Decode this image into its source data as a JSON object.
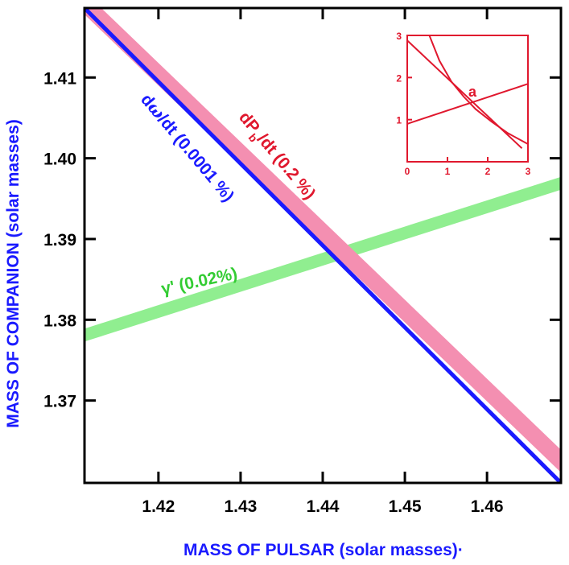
{
  "chart_data": {
    "type": "line",
    "xlabel": "MASS OF PULSAR (solar masses)",
    "xlabel_suffix": "·",
    "ylabel": "MASS OF COMPANION (solar masses)",
    "xlim": [
      1.411,
      1.469
    ],
    "ylim": [
      1.3598,
      1.4186
    ],
    "x_ticks": [
      1.42,
      1.43,
      1.44,
      1.45,
      1.46
    ],
    "x_tick_labels": [
      "1.42",
      "1.43",
      "1.44",
      "1.45",
      "1.46"
    ],
    "y_ticks": [
      1.37,
      1.38,
      1.39,
      1.4,
      1.41
    ],
    "y_tick_labels": [
      "1.37",
      "1.38",
      "1.39",
      "1.40",
      "1.41"
    ],
    "series": [
      {
        "name": "dPb/dt band",
        "label_main": "dP",
        "label_sub": "b",
        "label_rest": "/dt (0.2 %)",
        "color": "#f48fb1",
        "kind": "band",
        "centerline": [
          [
            1.411,
            1.4192
          ],
          [
            1.469,
            1.3625
          ]
        ],
        "half_width": 0.0014
      },
      {
        "name": "domega/dt line",
        "label_main": "d",
        "label_omega": "ω",
        "label_rest": "/dt (0.0001 %)",
        "color": "#1a1aff",
        "kind": "line",
        "points": [
          [
            1.411,
            1.4186
          ],
          [
            1.469,
            1.3598
          ]
        ]
      },
      {
        "name": "gamma band",
        "label": "γ' (0.02%)",
        "color": "#90ee90",
        "kind": "band",
        "centerline": [
          [
            1.411,
            1.3781
          ],
          [
            1.469,
            1.3969
          ]
        ],
        "half_width": 0.0008
      }
    ],
    "colors": {
      "axis": "#000000",
      "ylabel": "#1a1aff",
      "xlabel": "#1a1aff",
      "dPb_label": "#e0182e",
      "omega_label": "#1a1aff",
      "gamma_label": "#33cc33",
      "inset": "#e0182e"
    },
    "inset": {
      "letter": "a",
      "xlim": [
        0,
        3
      ],
      "ylim": [
        0,
        3
      ],
      "x_tick_labels": [
        "0",
        "1",
        "2",
        "3"
      ],
      "y_tick_labels": [
        "1",
        "2",
        "3"
      ],
      "curves": [
        {
          "name": "decreasing-line-a",
          "points": [
            [
              0,
              2.88
            ],
            [
              2.85,
              0.32
            ]
          ]
        },
        {
          "name": "increasing-line",
          "points": [
            [
              0,
              0.9
            ],
            [
              3,
              1.85
            ]
          ]
        },
        {
          "name": "steep-curve",
          "points": [
            [
              0.55,
              3.0
            ],
            [
              0.8,
              2.4
            ],
            [
              1.1,
              1.9
            ],
            [
              1.4,
              1.55
            ],
            [
              1.7,
              1.25
            ],
            [
              2.1,
              0.95
            ],
            [
              2.5,
              0.68
            ],
            [
              3.0,
              0.42
            ]
          ]
        }
      ]
    }
  }
}
